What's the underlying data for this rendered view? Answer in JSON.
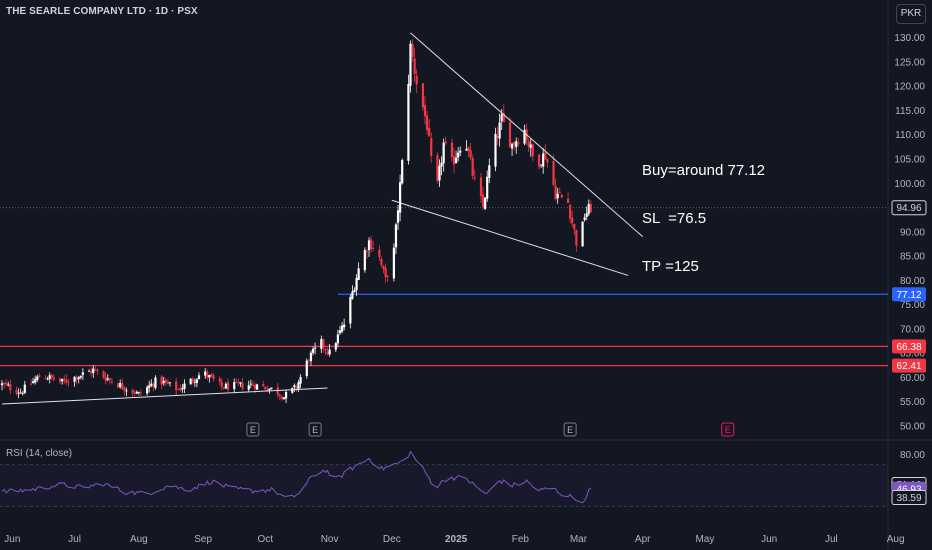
{
  "header": {
    "title": "THE SEARLE COMPANY LTD · 1D · PSX",
    "currency": "PKR"
  },
  "annotation": {
    "lines": [
      "Buy=around 77.12",
      "SL  =76.5",
      "TP =125"
    ]
  },
  "colors": {
    "background": "#131722",
    "up": "#ffffff",
    "down": "#f23645",
    "rsi": "#7e57c2",
    "blue_level": "#2962ff",
    "red_level": "#f23645",
    "trendline": "#e0e3eb"
  },
  "chart_data": {
    "type": "candlestick",
    "price_axis": {
      "ticks": [
        130.0,
        125.0,
        120.0,
        115.0,
        110.0,
        105.0,
        100.0,
        95.0,
        90.0,
        85.0,
        80.0,
        75.0,
        70.0,
        65.0,
        60.0,
        55.0,
        50.0
      ],
      "tick_labels": [
        "130.00",
        "125.00",
        "120.00",
        "115.00",
        "110.00",
        "105.00",
        "100.00",
        "",
        "90.00",
        "85.00",
        "80.00",
        "75.00",
        "70.00",
        "65.00",
        "60.00",
        "55.00",
        "50.00"
      ],
      "ylim": [
        47.5,
        132
      ]
    },
    "time_axis": {
      "labels": [
        "Jun",
        "Jul",
        "Aug",
        "Sep",
        "Oct",
        "Nov",
        "Dec",
        "2025",
        "Feb",
        "Mar",
        "Apr",
        "May",
        "Jun",
        "Jul",
        "Aug"
      ]
    },
    "last_price": {
      "value": 94.96,
      "label": "94.96"
    },
    "levels": [
      {
        "value": 77.12,
        "label": "77.12",
        "color": "#2962ff",
        "from": "Nov"
      },
      {
        "value": 66.38,
        "label": "66.38",
        "color": "#f23645",
        "from": "start"
      },
      {
        "value": 62.41,
        "label": "62.41",
        "color": "#f23645",
        "from": "start"
      }
    ],
    "trendlines": [
      {
        "x": [
          "2024-05-27",
          "2024-10-31"
        ],
        "y": [
          54.5,
          57.8
        ]
      },
      {
        "x": [
          "2024-12-10",
          "2025-04-01"
        ],
        "y": [
          131.0,
          89.0
        ]
      },
      {
        "x": [
          "2024-12-01",
          "2025-03-25"
        ],
        "y": [
          96.5,
          81.0
        ]
      }
    ],
    "anchors": [
      [
        "2024-05-27",
        58.5
      ],
      [
        "2024-06-05",
        57.0
      ],
      [
        "2024-06-15",
        60.5
      ],
      [
        "2024-06-25",
        59.0
      ],
      [
        "2024-07-10",
        61.5
      ],
      [
        "2024-07-20",
        59.0
      ],
      [
        "2024-08-01",
        56.5
      ],
      [
        "2024-08-10",
        59.5
      ],
      [
        "2024-08-20",
        57.5
      ],
      [
        "2024-09-01",
        61.0
      ],
      [
        "2024-09-10",
        58.0
      ],
      [
        "2024-09-25",
        58.5
      ],
      [
        "2024-10-05",
        57.5
      ],
      [
        "2024-10-10",
        56.0
      ],
      [
        "2024-10-16",
        58.0
      ],
      [
        "2024-10-22",
        64.0
      ],
      [
        "2024-10-28",
        67.0
      ],
      [
        "2024-11-01",
        65.0
      ],
      [
        "2024-11-08",
        71.0
      ],
      [
        "2024-11-12",
        77.5
      ],
      [
        "2024-11-16",
        84.0
      ],
      [
        "2024-11-20",
        88.0
      ],
      [
        "2024-11-24",
        86.0
      ],
      [
        "2024-11-28",
        80.0
      ],
      [
        "2024-12-02",
        86.0
      ],
      [
        "2024-12-04",
        95.0
      ],
      [
        "2024-12-06",
        104.0
      ],
      [
        "2024-12-08",
        115.0
      ],
      [
        "2024-12-10",
        128.0
      ],
      [
        "2024-12-13",
        121.0
      ],
      [
        "2024-12-18",
        112.0
      ],
      [
        "2024-12-22",
        96.5
      ],
      [
        "2024-12-26",
        108.0
      ],
      [
        "2024-12-30",
        104.0
      ],
      [
        "2025-01-05",
        110.0
      ],
      [
        "2025-01-10",
        100.0
      ],
      [
        "2025-01-14",
        95.0
      ],
      [
        "2025-01-18",
        106.0
      ],
      [
        "2025-01-23",
        113.0
      ],
      [
        "2025-01-28",
        108.0
      ],
      [
        "2025-02-03",
        111.0
      ],
      [
        "2025-02-08",
        104.0
      ],
      [
        "2025-02-13",
        106.0
      ],
      [
        "2025-02-18",
        98.0
      ],
      [
        "2025-02-24",
        96.0
      ],
      [
        "2025-03-01",
        86.0
      ],
      [
        "2025-03-04",
        93.5
      ],
      [
        "2025-03-07",
        95.0
      ]
    ],
    "rsi": {
      "label": "RSI (14, close)",
      "axis_ticks": [
        80.0
      ],
      "axis_labels": [
        "80.00"
      ],
      "ylim": [
        15,
        90
      ],
      "bands": [
        70,
        30
      ],
      "values_shown": [
        {
          "value": 51.1,
          "label": "51.10",
          "style": "outline"
        },
        {
          "value": 46.93,
          "label": "46.93",
          "style": "filled"
        },
        {
          "value": 38.59,
          "label": "38.59",
          "style": "outline"
        }
      ],
      "anchors": [
        [
          "2024-05-27",
          44
        ],
        [
          "2024-06-10",
          46
        ],
        [
          "2024-06-25",
          51
        ],
        [
          "2024-07-05",
          48
        ],
        [
          "2024-07-15",
          52
        ],
        [
          "2024-07-25",
          44
        ],
        [
          "2024-08-05",
          42
        ],
        [
          "2024-08-15",
          50
        ],
        [
          "2024-08-25",
          46
        ],
        [
          "2024-09-05",
          54
        ],
        [
          "2024-09-15",
          47
        ],
        [
          "2024-09-25",
          45
        ],
        [
          "2024-10-05",
          46
        ],
        [
          "2024-10-12",
          36
        ],
        [
          "2024-10-18",
          44
        ],
        [
          "2024-10-24",
          60
        ],
        [
          "2024-10-30",
          65
        ],
        [
          "2024-11-04",
          56
        ],
        [
          "2024-11-12",
          67
        ],
        [
          "2024-11-20",
          76
        ],
        [
          "2024-11-26",
          66
        ],
        [
          "2024-12-02",
          70
        ],
        [
          "2024-12-06",
          73
        ],
        [
          "2024-12-10",
          82
        ],
        [
          "2024-12-16",
          66
        ],
        [
          "2024-12-22",
          48
        ],
        [
          "2024-12-28",
          58
        ],
        [
          "2025-01-06",
          57
        ],
        [
          "2025-01-12",
          46
        ],
        [
          "2025-01-16",
          42
        ],
        [
          "2025-01-22",
          55
        ],
        [
          "2025-01-28",
          50
        ],
        [
          "2025-02-04",
          54
        ],
        [
          "2025-02-10",
          45
        ],
        [
          "2025-02-16",
          48
        ],
        [
          "2025-02-22",
          41
        ],
        [
          "2025-02-28",
          38
        ],
        [
          "2025-03-02",
          26
        ],
        [
          "2025-03-05",
          42
        ],
        [
          "2025-03-07",
          46.9
        ]
      ]
    },
    "earnings_markers": [
      {
        "date": "2024-09-25",
        "label": "E",
        "highlight": false
      },
      {
        "date": "2024-10-25",
        "label": "E",
        "highlight": false
      },
      {
        "date": "2025-02-25",
        "label": "E",
        "highlight": false
      },
      {
        "date": "2025-05-12",
        "label": "E",
        "highlight": true
      }
    ]
  }
}
